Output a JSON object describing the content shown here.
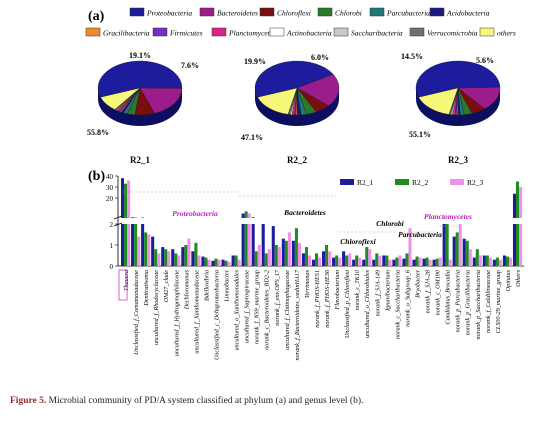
{
  "caption": {
    "label": "Figure 5.",
    "text": " Microbial community of PD/A system classified at phylum (a) and genus level (b)."
  },
  "panel_labels": {
    "a": "(a)",
    "b": "(b)"
  },
  "colors": {
    "Proteobacteria": "#1c1c9c",
    "Bacteroidetes": "#9c1c8c",
    "Chloroflexi": "#7a0e0e",
    "Chlorobi": "#2a7a2a",
    "Parcubacteria": "#207878",
    "Acidobacteria": "#1a1a80",
    "Gracilibacteria": "#f08a2a",
    "Firmicutes": "#7030c0",
    "Planctomycetes": "#e0208a",
    "Actinobacteria": "#ffffff",
    "Saccharibacteria": "#c8c8c8",
    "Verrucomicrobia": "#707070",
    "others": "#f7f77a",
    "R2_1": "#1c1c9c",
    "R2_2": "#1f8c1f",
    "R2_3": "#f090e8"
  },
  "chart_data": [
    {
      "type": "pie",
      "panel": "a",
      "legend": [
        "Proteobacteria",
        "Bacteroidetes",
        "Chloroflexi",
        "Chlorobi",
        "Parcubacteria",
        "Acidobacteria",
        "Gracilibacteria",
        "Firmicutes",
        "Planctomycetes",
        "Actinobacteria",
        "Saccharibacteria",
        "Verrucomicrobia",
        "others"
      ],
      "pies": [
        {
          "name": "R2_1",
          "slices": [
            {
              "label": "Proteobacteria",
              "value": 55.8
            },
            {
              "label": "Bacteroidetes",
              "value": 19.1
            },
            {
              "label": "Chloroflexi",
              "value": 7.6
            },
            {
              "label": "Chlorobi",
              "value": 3.0
            },
            {
              "label": "Parcubacteria",
              "value": 1.5
            },
            {
              "label": "Acidobacteria",
              "value": 1.0
            },
            {
              "label": "Gracilibacteria",
              "value": 0.5
            },
            {
              "label": "Firmicutes",
              "value": 0.5
            },
            {
              "label": "Planctomycetes",
              "value": 0.8
            },
            {
              "label": "Actinobacteria",
              "value": 0.3
            },
            {
              "label": "Saccharibacteria",
              "value": 0.3
            },
            {
              "label": "Verrucomicrobia",
              "value": 0.4
            },
            {
              "label": "others",
              "value": 9.2
            }
          ],
          "printed_labels": [
            "55.8%",
            "19.1%",
            "7.6%"
          ]
        },
        {
          "name": "R2_2",
          "slices": [
            {
              "label": "Proteobacteria",
              "value": 47.1
            },
            {
              "label": "Bacteroidetes",
              "value": 19.9
            },
            {
              "label": "Chloroflexi",
              "value": 6.0
            },
            {
              "label": "Chlorobi",
              "value": 4.0
            },
            {
              "label": "Parcubacteria",
              "value": 2.0
            },
            {
              "label": "Acidobacteria",
              "value": 1.5
            },
            {
              "label": "Gracilibacteria",
              "value": 0.5
            },
            {
              "label": "Firmicutes",
              "value": 0.5
            },
            {
              "label": "Planctomycetes",
              "value": 1.0
            },
            {
              "label": "Actinobacteria",
              "value": 0.5
            },
            {
              "label": "Saccharibacteria",
              "value": 0.5
            },
            {
              "label": "Verrucomicrobia",
              "value": 0.5
            },
            {
              "label": "others",
              "value": 16.0
            }
          ],
          "printed_labels": [
            "47.1%",
            "19.9%",
            "6.0%"
          ]
        },
        {
          "name": "R2_3",
          "slices": [
            {
              "label": "Proteobacteria",
              "value": 55.1
            },
            {
              "label": "Bacteroidetes",
              "value": 14.5
            },
            {
              "label": "Chloroflexi",
              "value": 5.6
            },
            {
              "label": "Chlorobi",
              "value": 3.0
            },
            {
              "label": "Parcubacteria",
              "value": 1.5
            },
            {
              "label": "Acidobacteria",
              "value": 1.0
            },
            {
              "label": "Gracilibacteria",
              "value": 0.5
            },
            {
              "label": "Firmicutes",
              "value": 0.5
            },
            {
              "label": "Planctomycetes",
              "value": 1.0
            },
            {
              "label": "Actinobacteria",
              "value": 0.5
            },
            {
              "label": "Saccharibacteria",
              "value": 0.4
            },
            {
              "label": "Verrucomicrobia",
              "value": 0.4
            },
            {
              "label": "others",
              "value": 16.0
            }
          ],
          "printed_labels": [
            "55.1%",
            "14.5%",
            "5.6%"
          ]
        }
      ]
    },
    {
      "type": "bar",
      "panel": "b",
      "ylabel": "",
      "yticks_upper": [
        20,
        30,
        40
      ],
      "yticks_lower": [
        0,
        1,
        2
      ],
      "ylim": [
        0,
        40
      ],
      "axis_break": 2,
      "legend_position": "top-right",
      "categories": [
        "Thauera",
        "Unclassified_f_Comamonadaceae",
        "Denitratisoma",
        "uncultured_f_Rhodocyclaceae",
        "OM27_clade",
        "uncultured_f_Hydrogenophilaceae",
        "Dechloromonas",
        "uncultured_f_Xanthomonadaceae",
        "Bdellovibrio",
        "Unclassified_c_Deltaproteobacteria",
        "Limnobacter",
        "uncultured_o_Xanthomonadales",
        "uncultured_f_Saprospiraceae",
        "norank_f_NS9_marine_group",
        "norank_c_Bacteroidetes_BD2-2",
        "norank_f_env.OPS_17",
        "uncultured_f_Chitinophagaceae",
        "norank_f_Bacteroidetes_vadinHA17",
        "Terrimonas",
        "norank_f_PHOS-HE51",
        "norank_f_PHOS-HE36",
        "Flavobacterium",
        "Unclassified_p_Chloroflexi",
        "norank_c_TK10",
        "uncultured_o_Chlorobiales",
        "norank_f_SJA-149",
        "Ignavibacterium",
        "norank_c_Saccharibacteria",
        "norank_o_Subgroup_6",
        "Bryobacter",
        "norank_f_SJA-28",
        "norank_c_OM190",
        "Candidatus_Brocadia",
        "norank_p_Parcubacteria",
        "norank_p_Gracilibacteria",
        "norank_p_Saccharibacteria",
        "norank_f_Caldilineaceae",
        "CL500-29_marine_group",
        "Opitutus",
        "Others"
      ],
      "series": [
        {
          "name": "R2_1",
          "values": [
            38,
            2.6,
            2.4,
            1.4,
            0.9,
            0.8,
            0.9,
            0.7,
            0.45,
            0.25,
            0.3,
            0.5,
            6.0,
            2.6,
            2.0,
            1.9,
            1.3,
            1.2,
            0.6,
            0.3,
            0.7,
            0.4,
            0.7,
            0.3,
            0.3,
            0.3,
            0.5,
            0.3,
            0.35,
            0.3,
            0.35,
            0.3,
            2.1,
            1.4,
            1.3,
            0.4,
            0.5,
            0.3,
            0.5,
            24
          ]
        },
        {
          "name": "R2_2",
          "values": [
            33,
            2.4,
            1.6,
            0.8,
            0.8,
            0.6,
            1.0,
            1.1,
            0.4,
            0.35,
            0.25,
            0.5,
            8.0,
            0.7,
            0.6,
            1.0,
            1.2,
            1.8,
            0.9,
            0.6,
            1.0,
            0.5,
            0.5,
            0.5,
            0.9,
            0.6,
            0.5,
            0.4,
            0.6,
            0.45,
            0.4,
            0.35,
            2.0,
            1.6,
            1.2,
            0.8,
            0.5,
            0.4,
            0.45,
            35
          ]
        },
        {
          "name": "R2_3",
          "values": [
            36,
            1.4,
            1.5,
            0.6,
            0.7,
            0.5,
            1.3,
            0.5,
            0.3,
            0.3,
            0.2,
            0.3,
            6.0,
            1.0,
            0.8,
            0.9,
            1.6,
            1.1,
            0.5,
            0.4,
            0.7,
            0.4,
            0.6,
            0.4,
            0.8,
            0.5,
            0.3,
            0.5,
            1.8,
            0.4,
            0.3,
            0.4,
            0.3,
            2.6,
            0.8,
            0.5,
            0.4,
            0.3,
            0.4,
            30
          ]
        }
      ],
      "annotations": [
        {
          "text": "Proteobacteria",
          "color": "#c020c0"
        },
        {
          "text": "Bacteroidetes",
          "color": "#000000"
        },
        {
          "text": "Chloroflexi",
          "color": "#000000"
        },
        {
          "text": "Chlorobi",
          "color": "#000000"
        },
        {
          "text": "Parcubacteria",
          "color": "#000000"
        },
        {
          "text": "Planctomycetes",
          "color": "#c020c0"
        }
      ]
    }
  ]
}
